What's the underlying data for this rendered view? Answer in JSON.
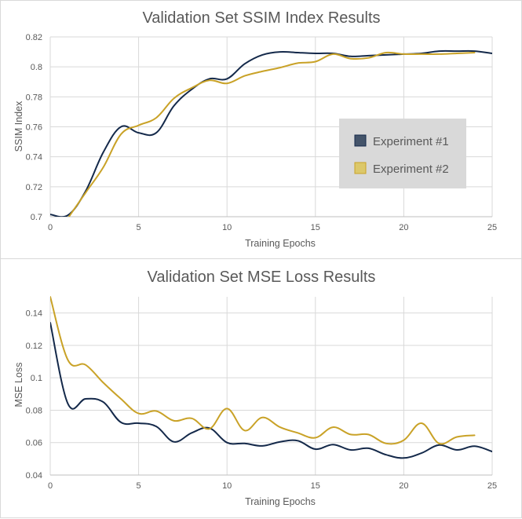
{
  "colors": {
    "series1": "#14294a",
    "series2": "#c9a227",
    "grid": "#d9d9d9",
    "axis": "#bfbfbf",
    "legend_bg": "#d9d9d9"
  },
  "chart_data": [
    {
      "type": "line",
      "title": "Validation Set SSIM Index Results",
      "xlabel": "Training Epochs",
      "ylabel": "SSIM Index",
      "xlim": [
        0,
        25
      ],
      "ylim": [
        0.7,
        0.82
      ],
      "xticks": [
        0,
        5,
        10,
        15,
        20,
        25
      ],
      "yticks": [
        0.7,
        0.72,
        0.74,
        0.76,
        0.78,
        0.8,
        0.82
      ],
      "grid": true,
      "legend": {
        "placement": "center-right",
        "entries": [
          "Experiment #1",
          "Experiment #2"
        ]
      },
      "series": [
        {
          "name": "Experiment #1",
          "x": [
            0,
            1,
            2,
            3,
            4,
            5,
            6,
            7,
            8,
            9,
            10,
            11,
            12,
            13,
            14,
            15,
            16,
            17,
            18,
            19,
            20,
            21,
            22,
            23,
            24,
            25
          ],
          "values": [
            0.7015,
            0.701,
            0.717,
            0.743,
            0.76,
            0.756,
            0.756,
            0.774,
            0.785,
            0.792,
            0.792,
            0.802,
            0.808,
            0.81,
            0.8095,
            0.809,
            0.809,
            0.807,
            0.8075,
            0.808,
            0.8085,
            0.809,
            0.8105,
            0.8105,
            0.8105,
            0.809
          ]
        },
        {
          "name": "Experiment #2",
          "x": [
            1,
            2,
            3,
            4,
            5,
            6,
            7,
            8,
            9,
            10,
            11,
            12,
            13,
            14,
            15,
            16,
            17,
            18,
            19,
            20,
            21,
            22,
            23,
            24
          ],
          "values": [
            0.699,
            0.716,
            0.733,
            0.755,
            0.761,
            0.766,
            0.779,
            0.786,
            0.791,
            0.789,
            0.794,
            0.797,
            0.7995,
            0.8025,
            0.8035,
            0.8085,
            0.8055,
            0.806,
            0.8095,
            0.8085,
            0.8085,
            0.8085,
            0.809,
            0.8095
          ]
        }
      ]
    },
    {
      "type": "line",
      "title": "Validation Set MSE Loss Results",
      "xlabel": "Training Epochs",
      "ylabel": "MSE Loss",
      "xlim": [
        0,
        25
      ],
      "ylim": [
        0.04,
        0.15
      ],
      "xticks": [
        0,
        5,
        10,
        15,
        20,
        25
      ],
      "yticks": [
        0.04,
        0.06,
        0.08,
        0.1,
        0.12,
        0.14
      ],
      "grid": true,
      "series": [
        {
          "name": "Experiment #1",
          "x": [
            0,
            1,
            2,
            3,
            4,
            5,
            6,
            7,
            8,
            9,
            10,
            11,
            12,
            13,
            14,
            15,
            16,
            17,
            18,
            19,
            20,
            21,
            22,
            23,
            24,
            25
          ],
          "values": [
            0.134,
            0.084,
            0.087,
            0.085,
            0.0725,
            0.072,
            0.07,
            0.0605,
            0.066,
            0.069,
            0.06,
            0.0595,
            0.058,
            0.0605,
            0.0612,
            0.056,
            0.0588,
            0.0555,
            0.0565,
            0.0525,
            0.0505,
            0.0535,
            0.0585,
            0.0555,
            0.0578,
            0.0545
          ]
        },
        {
          "name": "Experiment #2",
          "x": [
            0,
            1,
            2,
            3,
            4,
            5,
            6,
            7,
            8,
            9,
            10,
            11,
            12,
            13,
            14,
            15,
            16,
            17,
            18,
            19,
            20,
            21,
            22,
            23,
            24
          ],
          "values": [
            0.15,
            0.111,
            0.108,
            0.097,
            0.087,
            0.078,
            0.0795,
            0.0735,
            0.075,
            0.0685,
            0.081,
            0.0675,
            0.0755,
            0.0695,
            0.066,
            0.063,
            0.0695,
            0.065,
            0.065,
            0.0595,
            0.0615,
            0.072,
            0.0595,
            0.0635,
            0.0645
          ]
        }
      ]
    }
  ]
}
